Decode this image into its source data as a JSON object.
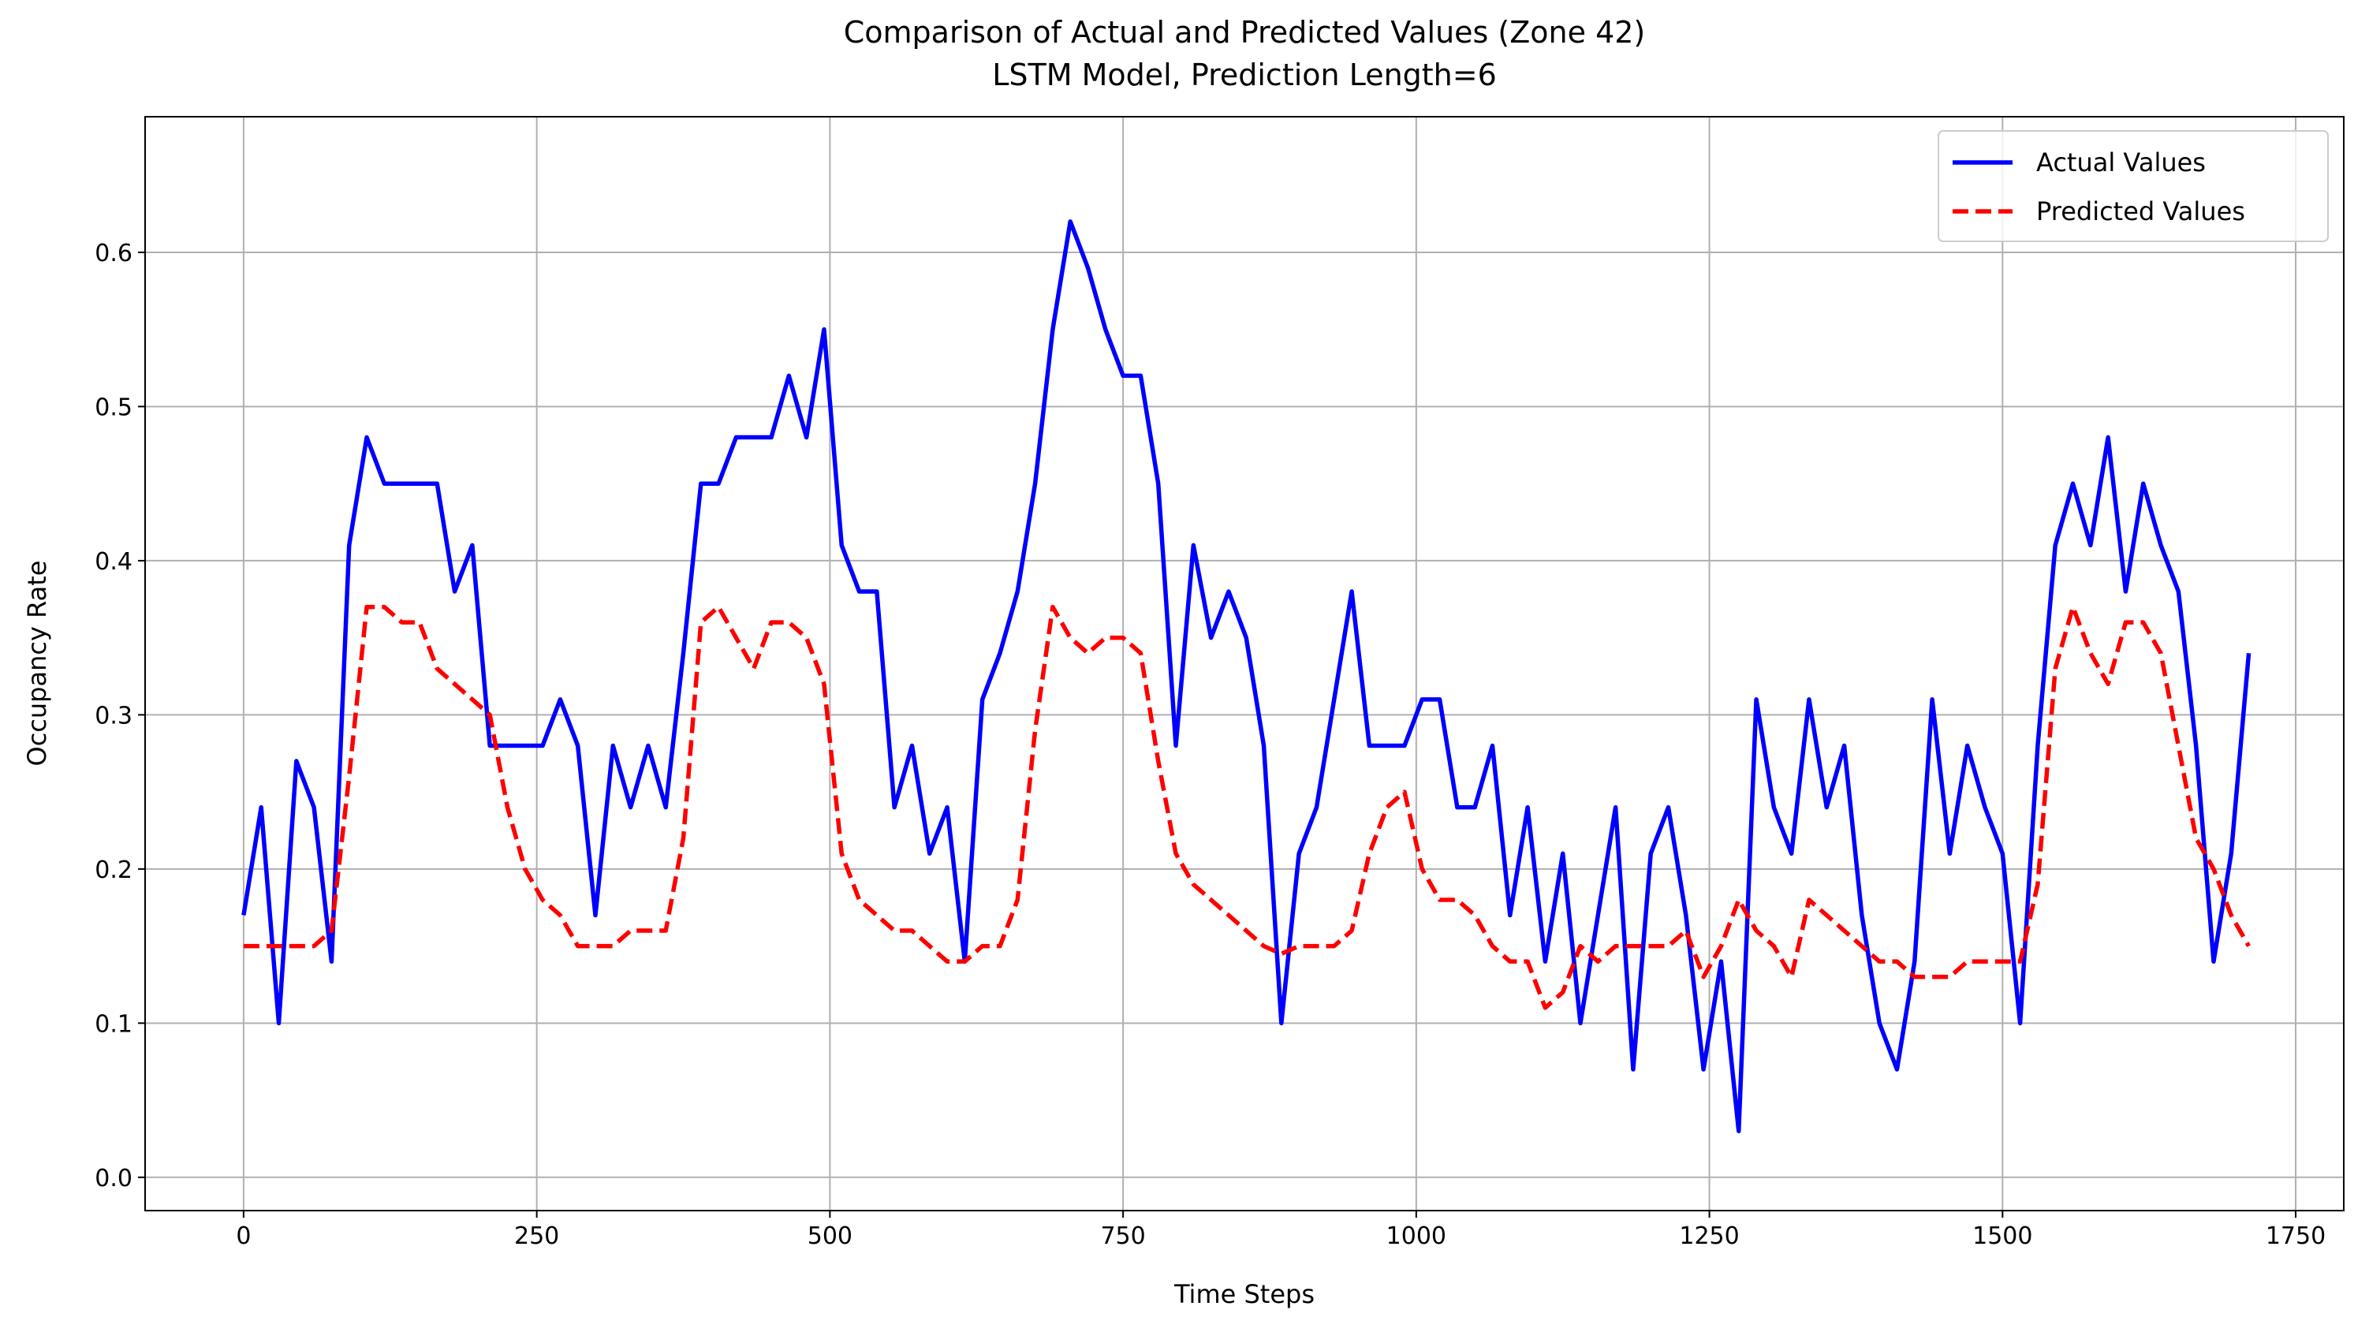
{
  "chart_data": {
    "type": "line",
    "title": "Comparison of Actual and Predicted Values (Zone 42)",
    "subtitle": "LSTM Model, Prediction Length=6",
    "x_label": "Time Steps",
    "y_label": "Occupancy Rate",
    "xlim": [
      -84,
      1791
    ],
    "ylim": [
      -0.0216,
      0.688
    ],
    "xticks": [
      0,
      250,
      500,
      750,
      1000,
      1250,
      1500,
      1750
    ],
    "yticks": [
      {
        "value": 0,
        "label": "0.0"
      },
      0.1,
      0.2,
      0.3,
      0.4,
      0.5,
      0.6
    ],
    "grid": true,
    "legend": "upper right",
    "x": [
      0,
      15,
      30,
      45,
      60,
      75,
      90,
      105,
      120,
      135,
      150,
      165,
      180,
      195,
      210,
      225,
      240,
      255,
      270,
      285,
      300,
      315,
      330,
      345,
      360,
      375,
      390,
      405,
      420,
      435,
      450,
      465,
      480,
      495,
      510,
      525,
      540,
      555,
      570,
      585,
      600,
      615,
      630,
      645,
      660,
      675,
      690,
      705,
      720,
      735,
      750,
      765,
      780,
      795,
      810,
      825,
      840,
      855,
      870,
      885,
      900,
      915,
      930,
      945,
      960,
      975,
      990,
      1005,
      1020,
      1035,
      1050,
      1065,
      1080,
      1095,
      1110,
      1125,
      1140,
      1155,
      1170,
      1185,
      1200,
      1215,
      1230,
      1245,
      1260,
      1275,
      1290,
      1305,
      1320,
      1335,
      1350,
      1365,
      1380,
      1395,
      1410,
      1425,
      1440,
      1455,
      1470,
      1485,
      1500,
      1515,
      1530,
      1545,
      1560,
      1575,
      1590,
      1605,
      1620,
      1635,
      1650,
      1665,
      1680,
      1695,
      1710
    ],
    "series": [
      {
        "name": "Actual Values",
        "color": "#0000ff",
        "style": "solid",
        "values": [
          0.17,
          0.24,
          0.1,
          0.27,
          0.24,
          0.14,
          0.41,
          0.48,
          0.45,
          0.45,
          0.45,
          0.45,
          0.38,
          0.41,
          0.28,
          0.28,
          0.28,
          0.28,
          0.31,
          0.28,
          0.17,
          0.28,
          0.24,
          0.28,
          0.24,
          0.34,
          0.45,
          0.45,
          0.48,
          0.48,
          0.48,
          0.52,
          0.48,
          0.55,
          0.41,
          0.38,
          0.38,
          0.24,
          0.28,
          0.21,
          0.24,
          0.14,
          0.31,
          0.34,
          0.38,
          0.45,
          0.55,
          0.62,
          0.59,
          0.55,
          0.52,
          0.52,
          0.45,
          0.28,
          0.41,
          0.35,
          0.38,
          0.35,
          0.28,
          0.1,
          0.21,
          0.24,
          0.31,
          0.38,
          0.28,
          0.28,
          0.28,
          0.31,
          0.31,
          0.24,
          0.24,
          0.28,
          0.17,
          0.24,
          0.14,
          0.21,
          0.1,
          0.17,
          0.24,
          0.07,
          0.21,
          0.24,
          0.17,
          0.07,
          0.14,
          0.03,
          0.31,
          0.24,
          0.21,
          0.31,
          0.24,
          0.28,
          0.17,
          0.1,
          0.07,
          0.14,
          0.31,
          0.21,
          0.28,
          0.24,
          0.21,
          0.1,
          0.28,
          0.41,
          0.45,
          0.41,
          0.48,
          0.38,
          0.45,
          0.41,
          0.38,
          0.28,
          0.14,
          0.21,
          0.34
        ]
      },
      {
        "name": "Predicted Values",
        "color": "#ff0000",
        "style": "dashed",
        "values": [
          0.15,
          0.15,
          0.15,
          0.15,
          0.15,
          0.16,
          0.26,
          0.37,
          0.37,
          0.36,
          0.36,
          0.33,
          0.32,
          0.31,
          0.3,
          0.24,
          0.2,
          0.18,
          0.17,
          0.15,
          0.15,
          0.15,
          0.16,
          0.16,
          0.16,
          0.22,
          0.36,
          0.37,
          0.35,
          0.33,
          0.36,
          0.36,
          0.35,
          0.32,
          0.21,
          0.18,
          0.17,
          0.16,
          0.16,
          0.15,
          0.14,
          0.14,
          0.15,
          0.15,
          0.18,
          0.29,
          0.37,
          0.35,
          0.34,
          0.35,
          0.35,
          0.34,
          0.27,
          0.21,
          0.19,
          0.18,
          0.17,
          0.16,
          0.15,
          0.145,
          0.15,
          0.15,
          0.15,
          0.16,
          0.21,
          0.24,
          0.25,
          0.2,
          0.18,
          0.18,
          0.17,
          0.15,
          0.14,
          0.14,
          0.11,
          0.12,
          0.15,
          0.14,
          0.15,
          0.15,
          0.15,
          0.15,
          0.16,
          0.13,
          0.15,
          0.18,
          0.16,
          0.15,
          0.13,
          0.18,
          0.17,
          0.16,
          0.15,
          0.14,
          0.14,
          0.13,
          0.13,
          0.13,
          0.14,
          0.14,
          0.14,
          0.14,
          0.19,
          0.33,
          0.37,
          0.34,
          0.32,
          0.36,
          0.36,
          0.34,
          0.28,
          0.22,
          0.2,
          0.17,
          0.15
        ]
      }
    ]
  }
}
